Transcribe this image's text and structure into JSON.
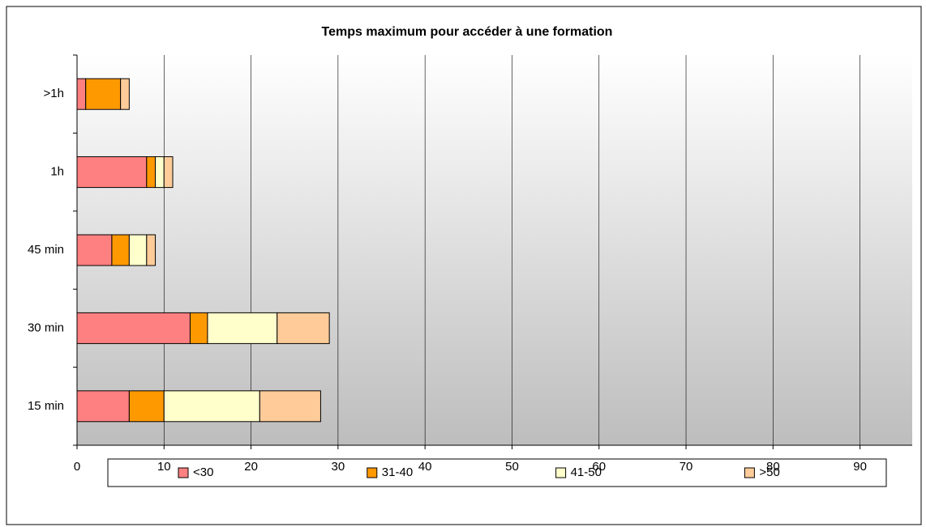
{
  "chart_data": {
    "type": "stacked_hbar",
    "title": "Temps maximum pour accéder à une formation",
    "categories": [
      ">1h",
      "1h",
      "45 min",
      "30 min",
      "15 min"
    ],
    "series": [
      {
        "name": "<30",
        "color": "#ff8080",
        "values": [
          1,
          8,
          4,
          13,
          6
        ]
      },
      {
        "name": "31-40",
        "color": "#ff9900",
        "values": [
          4,
          1,
          2,
          2,
          4
        ]
      },
      {
        "name": "41-50",
        "color": "#ffffcc",
        "values": [
          0,
          1,
          2,
          8,
          11
        ]
      },
      {
        "name": ">50",
        "color": "#ffcc99",
        "values": [
          1,
          1,
          1,
          6,
          7
        ]
      }
    ],
    "xlim": [
      0,
      96
    ],
    "xticks": [
      0,
      10,
      20,
      30,
      40,
      50,
      60,
      70,
      80,
      90
    ],
    "grid": true,
    "legend": "bottom"
  }
}
